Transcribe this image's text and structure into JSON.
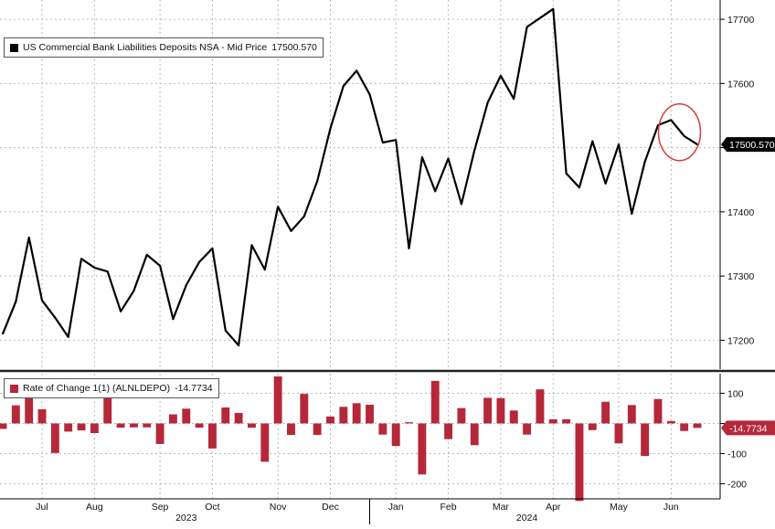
{
  "chart_data": [
    {
      "type": "line",
      "legend": {
        "label": "US Commercial Bank Liabilities Deposits NSA - Mid Price",
        "value": "17500.570",
        "placement": "top-left"
      },
      "last_value_label": "17500.570",
      "ylim": [
        17155,
        17730
      ],
      "yticks": [
        17200,
        17300,
        17400,
        17500,
        17600,
        17700
      ],
      "ytick_labels": [
        "17200",
        "17300",
        "17400",
        "17500",
        "17600",
        "17700"
      ],
      "grid": true,
      "line_color": "#000000",
      "annotation": {
        "type": "circle",
        "color": "#d63b3b",
        "target": "last points"
      },
      "series": [
        {
          "values": [
            17210,
            17260,
            17360,
            17262,
            17235,
            17205,
            17327,
            17313,
            17307,
            17245,
            17277,
            17333,
            17316,
            17233,
            17286,
            17322,
            17343,
            17215,
            17192,
            17348,
            17310,
            17408,
            17370,
            17393,
            17448,
            17530,
            17596,
            17620,
            17583,
            17508,
            17512,
            17343,
            17485,
            17432,
            17483,
            17412,
            17496,
            17570,
            17612,
            17576,
            17688,
            17702,
            17716,
            17460,
            17438,
            17510,
            17444,
            17505,
            17397,
            17478,
            17535,
            17543,
            17518,
            17505
          ]
        }
      ]
    },
    {
      "type": "bar",
      "legend": {
        "label": "Rate of Change 1(1) (ALNLDEPO)",
        "value": "-14.7734",
        "placement": "top-left"
      },
      "last_value_label": "-14.7734",
      "ylim": [
        -250,
        165
      ],
      "yticks": [
        100,
        0,
        -100,
        -200
      ],
      "ytick_labels": [
        "100",
        "-0",
        "-100",
        "-200"
      ],
      "grid": true,
      "bar_color": "#b5283a",
      "series": [
        {
          "values": [
            -18,
            60,
            100,
            47,
            -98,
            -27,
            -23,
            -32,
            97,
            -14,
            -13,
            -13,
            -68,
            30,
            49,
            -14,
            -83,
            53,
            35,
            -14,
            -127,
            156,
            -38,
            98,
            -38,
            23,
            55,
            67,
            62,
            -37,
            -75,
            4,
            -169,
            141,
            -52,
            51,
            -72,
            85,
            84,
            43,
            -37,
            113,
            14,
            14,
            -257,
            -22,
            72,
            -66,
            61,
            -108,
            81,
            8,
            -25,
            -14.7734
          ]
        }
      ]
    },
    {
      "type": "axis",
      "months": [
        {
          "label": "Jul",
          "index": 3
        },
        {
          "label": "Aug",
          "index": 7
        },
        {
          "label": "Sep",
          "index": 12
        },
        {
          "label": "Oct",
          "index": 16
        },
        {
          "label": "Nov",
          "index": 21
        },
        {
          "label": "Dec",
          "index": 25
        },
        {
          "label": "Jan",
          "index": 30
        },
        {
          "label": "Feb",
          "index": 34
        },
        {
          "label": "Mar",
          "index": 38
        },
        {
          "label": "Apr",
          "index": 42
        },
        {
          "label": "May",
          "index": 47
        },
        {
          "label": "Jun",
          "index": 51
        }
      ],
      "years": [
        {
          "label": "2023",
          "index": 14
        },
        {
          "label": "2024",
          "index": 40
        }
      ]
    }
  ]
}
